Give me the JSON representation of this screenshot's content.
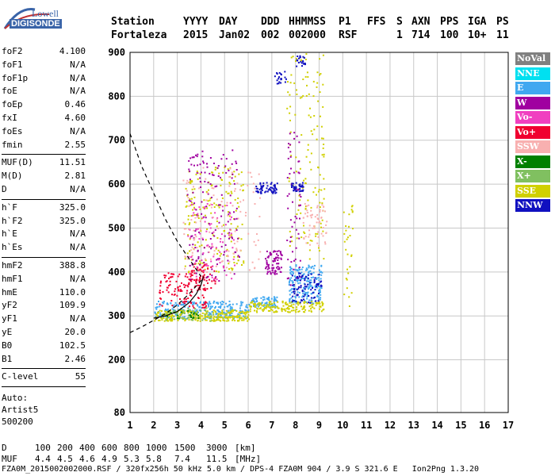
{
  "logo": {
    "top": "Lowell",
    "bottom": "DIGISONDE"
  },
  "header": {
    "labels": [
      "Station",
      "YYYY",
      "DAY",
      "DDD",
      "HHMMSS",
      "P1",
      "FFS",
      "S",
      "AXN",
      "PPS",
      "IGA",
      "PS"
    ],
    "values": [
      "Fortaleza",
      "2015",
      "Jan02",
      "002",
      "002000",
      "RSF",
      "1",
      "714",
      "100",
      "10+",
      "11"
    ]
  },
  "params": [
    {
      "name": "foF2",
      "value": "4.100"
    },
    {
      "name": "foF1",
      "value": "N/A"
    },
    {
      "name": "foF1p",
      "value": "N/A"
    },
    {
      "name": "foE",
      "value": "N/A"
    },
    {
      "name": "foEp",
      "value": "0.46"
    },
    {
      "name": "fxI",
      "value": "4.60"
    },
    {
      "name": "foEs",
      "value": "N/A"
    },
    {
      "name": "fmin",
      "value": "2.55"
    },
    {
      "name": "MUF(D)",
      "value": "11.51"
    },
    {
      "name": "M(D)",
      "value": "2.81"
    },
    {
      "name": "D",
      "value": "N/A"
    },
    {
      "name": "h`F",
      "value": "325.0"
    },
    {
      "name": "h`F2",
      "value": "325.0"
    },
    {
      "name": "h`E",
      "value": "N/A"
    },
    {
      "name": "h`Es",
      "value": "N/A"
    },
    {
      "name": "hmF2",
      "value": "388.8"
    },
    {
      "name": "hmF1",
      "value": "N/A"
    },
    {
      "name": "hmE",
      "value": "110.0"
    },
    {
      "name": "yF2",
      "value": "109.9"
    },
    {
      "name": "yF1",
      "value": "N/A"
    },
    {
      "name": "yE",
      "value": "20.0"
    },
    {
      "name": "B0",
      "value": "102.5"
    },
    {
      "name": "B1",
      "value": "2.46"
    },
    {
      "name": "C-level",
      "value": "55"
    }
  ],
  "auto": {
    "line1": "Auto:",
    "line2": "Artist5",
    "line3": "500200"
  },
  "legend": [
    {
      "label": "NoVal",
      "bg": "#808080",
      "fg": "#ffffff"
    },
    {
      "label": "NNE",
      "bg": "#00e0f0",
      "fg": "#ffffff"
    },
    {
      "label": "E",
      "bg": "#40a8f0",
      "fg": "#ffffff"
    },
    {
      "label": "W",
      "bg": "#a000a0",
      "fg": "#ffffff"
    },
    {
      "label": "Vo-",
      "bg": "#f040c0",
      "fg": "#ffffff"
    },
    {
      "label": "Vo+",
      "bg": "#f00030",
      "fg": "#ffffff"
    },
    {
      "label": "SSW",
      "bg": "#f8b0b0",
      "fg": "#ffffff"
    },
    {
      "label": "X-",
      "bg": "#008000",
      "fg": "#ffffff"
    },
    {
      "label": "X+",
      "bg": "#80c060",
      "fg": "#ffffff"
    },
    {
      "label": "SSE",
      "bg": "#d0d000",
      "fg": "#ffffff"
    },
    {
      "label": "NNW",
      "bg": "#1010c0",
      "fg": "#ffffff"
    }
  ],
  "footer": {
    "d_label": "D",
    "d_values": [
      "100",
      "200",
      "400",
      "600",
      "800",
      "1000",
      "1500",
      "3000"
    ],
    "d_unit": "[km]",
    "muf_label": "MUF",
    "muf_values": [
      "4.4",
      "4.5",
      "4.6",
      "4.9",
      "5.3",
      "5.8",
      "7.4",
      "11.5"
    ],
    "muf_unit": "[MHz]",
    "file_line": "FZA0M_2015002002000.RSF / 320fx256h 50 kHz 5.0 km / DPS-4 FZA0M 904 / 3.9 S 321.6 E   Ion2Png 1.3.20"
  },
  "chart_data": {
    "type": "scatter",
    "title": "",
    "xlabel": "",
    "ylabel": "",
    "xlim": [
      1,
      17
    ],
    "ylim": [
      80,
      900
    ],
    "x_ticks": [
      1,
      2,
      3,
      4,
      5,
      6,
      7,
      8,
      9,
      10,
      11,
      12,
      13,
      14,
      15,
      16,
      17
    ],
    "y_ticks": [
      80,
      200,
      300,
      400,
      500,
      600,
      700,
      800,
      900
    ],
    "grid": true,
    "series": [
      {
        "name": "E",
        "color": "#40a8f0",
        "clusters": [
          {
            "x": [
              2.0,
              6.0
            ],
            "y": [
              295,
              335
            ],
            "n": 260
          },
          {
            "x": [
              6.0,
              7.2
            ],
            "y": [
              320,
              345
            ],
            "n": 80
          },
          {
            "x": [
              7.7,
              9.1
            ],
            "y": [
              330,
              420
            ],
            "n": 200
          }
        ]
      },
      {
        "name": "SSE",
        "color": "#d0d000",
        "clusters": [
          {
            "x": [
              2.0,
              6.0
            ],
            "y": [
              290,
              315
            ],
            "n": 260
          },
          {
            "x": [
              6.0,
              9.2
            ],
            "y": [
              310,
              335
            ],
            "n": 160
          },
          {
            "x": [
              3.3,
              5.8
            ],
            "y": [
              400,
              640
            ],
            "n": 180
          },
          {
            "x": [
              7.6,
              9.2
            ],
            "y": [
              430,
              900
            ],
            "n": 140
          },
          {
            "x": [
              10.0,
              10.4
            ],
            "y": [
              320,
              560
            ],
            "n": 30
          }
        ]
      },
      {
        "name": "Vo+",
        "color": "#f00030",
        "clusters": [
          {
            "x": [
              2.2,
              4.2
            ],
            "y": [
              320,
              400
            ],
            "n": 120
          },
          {
            "x": [
              3.5,
              4.6
            ],
            "y": [
              360,
              420
            ],
            "n": 60
          }
        ]
      },
      {
        "name": "W",
        "color": "#a000a0",
        "clusters": [
          {
            "x": [
              3.4,
              5.6
            ],
            "y": [
              380,
              680
            ],
            "n": 150
          },
          {
            "x": [
              6.7,
              7.4
            ],
            "y": [
              395,
              450
            ],
            "n": 80
          },
          {
            "x": [
              7.6,
              8.2
            ],
            "y": [
              370,
              720
            ],
            "n": 60
          }
        ]
      },
      {
        "name": "Vo-",
        "color": "#f040c0",
        "clusters": [
          {
            "x": [
              3.4,
              5.4
            ],
            "y": [
              380,
              560
            ],
            "n": 80
          }
        ]
      },
      {
        "name": "SSW",
        "color": "#f8b0b0",
        "clusters": [
          {
            "x": [
              3.2,
              6.5
            ],
            "y": [
              400,
              640
            ],
            "n": 120
          },
          {
            "x": [
              8.3,
              9.3
            ],
            "y": [
              460,
              560
            ],
            "n": 60
          }
        ]
      },
      {
        "name": "NNW",
        "color": "#1010c0",
        "clusters": [
          {
            "x": [
              6.3,
              7.2
            ],
            "y": [
              580,
              605
            ],
            "n": 60
          },
          {
            "x": [
              7.8,
              8.3
            ],
            "y": [
              585,
              605
            ],
            "n": 40
          },
          {
            "x": [
              7.1,
              7.6
            ],
            "y": [
              830,
              865
            ],
            "n": 20
          },
          {
            "x": [
              8.0,
              8.4
            ],
            "y": [
              870,
              895
            ],
            "n": 20
          },
          {
            "x": [
              7.8,
              9.1
            ],
            "y": [
              330,
              400
            ],
            "n": 80
          }
        ]
      },
      {
        "name": "X+",
        "color": "#80c060",
        "clusters": [
          {
            "x": [
              2.3,
              4.5
            ],
            "y": [
              290,
              320
            ],
            "n": 40
          }
        ]
      },
      {
        "name": "X-",
        "color": "#008000",
        "clusters": [
          {
            "x": [
              2.5,
              4.0
            ],
            "y": [
              295,
              315
            ],
            "n": 20
          }
        ]
      }
    ],
    "curves": [
      {
        "name": "profile",
        "style": "dashed",
        "x": [
          1.0,
          1.5,
          2.0,
          2.5,
          3.0,
          3.5,
          4.0
        ],
        "y": [
          715,
          640,
          580,
          520,
          470,
          430,
          390
        ]
      },
      {
        "name": "trace",
        "style": "dashed",
        "x": [
          1.0,
          1.5,
          2.0,
          2.5,
          3.0,
          3.5,
          4.0,
          4.1
        ],
        "y": [
          262,
          275,
          290,
          305,
          325,
          350,
          380,
          390
        ]
      },
      {
        "name": "fit",
        "style": "solid",
        "x": [
          2.0,
          2.5,
          3.0,
          3.5,
          3.8,
          4.0,
          4.1
        ],
        "y": [
          295,
          300,
          310,
          330,
          350,
          370,
          388
        ]
      }
    ]
  }
}
